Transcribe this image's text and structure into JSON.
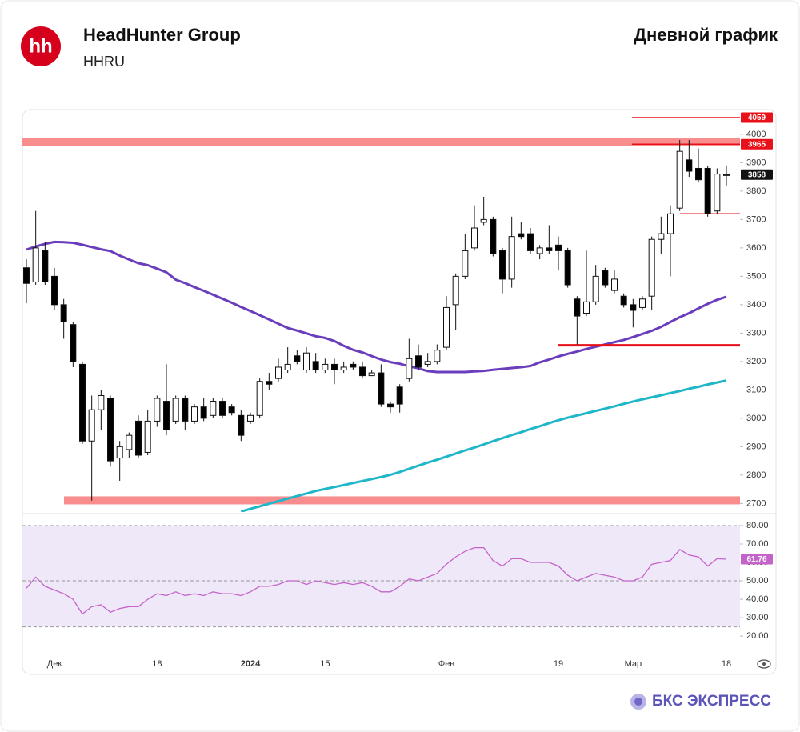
{
  "header": {
    "logo": "hh",
    "title": "HeadHunter Group",
    "ticker": "HHRU",
    "chart_label": "Дневной график"
  },
  "footer": {
    "brand": "БКС ЭКСПРЕСС"
  },
  "chart_data": {
    "type": "candlestick",
    "categories": [
      null,
      null,
      null,
      "Дек",
      null,
      null,
      null,
      null,
      null,
      null,
      null,
      null,
      null,
      null,
      "18",
      null,
      null,
      null,
      null,
      null,
      null,
      null,
      null,
      null,
      "2024",
      null,
      null,
      null,
      null,
      null,
      null,
      null,
      "15",
      null,
      null,
      null,
      null,
      null,
      null,
      null,
      null,
      null,
      null,
      null,
      null,
      "Фев",
      null,
      null,
      null,
      null,
      null,
      null,
      null,
      null,
      null,
      null,
      null,
      "19",
      null,
      null,
      null,
      null,
      null,
      null,
      null,
      "Мар",
      null,
      null,
      null,
      null,
      null,
      null,
      null,
      null,
      null,
      "18"
    ],
    "open": [
      3530,
      3480,
      3590,
      3500,
      3400,
      3330,
      3190,
      2920,
      3030,
      3070,
      2860,
      2890,
      2990,
      2880,
      2990,
      3060,
      2990,
      3070,
      2990,
      3040,
      3010,
      3060,
      3040,
      3010,
      2990,
      3010,
      3130,
      3140,
      3170,
      3220,
      3170,
      3200,
      3170,
      3190,
      3170,
      3190,
      3180,
      3150,
      3160,
      3050,
      3110,
      3140,
      3220,
      3190,
      3200,
      3250,
      3400,
      3500,
      3600,
      3690,
      3700,
      3590,
      3490,
      3650,
      3650,
      3580,
      3600,
      3610,
      3590,
      3420,
      3370,
      3410,
      3520,
      3450,
      3430,
      3400,
      3390,
      3430,
      3630,
      3650,
      3740,
      3910,
      3880,
      3880,
      3730,
      3855
    ],
    "high": [
      3560,
      3730,
      3620,
      3530,
      3420,
      3340,
      3200,
      3080,
      3100,
      3080,
      2920,
      2950,
      3010,
      3030,
      3080,
      3190,
      3080,
      3080,
      3050,
      3070,
      3070,
      3070,
      3050,
      3030,
      3020,
      3140,
      3160,
      3210,
      3250,
      3240,
      3250,
      3230,
      3210,
      3210,
      3200,
      3200,
      3200,
      3170,
      3190,
      3060,
      3120,
      3280,
      3260,
      3230,
      3260,
      3430,
      3510,
      3650,
      3750,
      3780,
      3710,
      3600,
      3710,
      3690,
      3670,
      3610,
      3680,
      3640,
      3600,
      3430,
      3590,
      3540,
      3530,
      3520,
      3440,
      3420,
      3430,
      3640,
      3710,
      3750,
      3980,
      3980,
      3950,
      3890,
      3880,
      3890
    ],
    "low": [
      3405,
      3470,
      3470,
      3380,
      3280,
      3180,
      2910,
      2710,
      2960,
      2830,
      2780,
      2860,
      2860,
      2870,
      2970,
      2940,
      2980,
      2960,
      2980,
      2990,
      3000,
      3000,
      3010,
      2920,
      2980,
      3000,
      3100,
      3130,
      3160,
      3190,
      3160,
      3160,
      3160,
      3120,
      3160,
      3170,
      3140,
      3150,
      3040,
      3020,
      3020,
      3130,
      3170,
      3180,
      3190,
      3240,
      3310,
      3490,
      3590,
      3680,
      3570,
      3440,
      3460,
      3630,
      3580,
      3560,
      3580,
      3520,
      3460,
      3260,
      3360,
      3400,
      3460,
      3440,
      3390,
      3320,
      3380,
      3380,
      3580,
      3500,
      3730,
      3850,
      3830,
      3710,
      3720,
      3820
    ],
    "close": [
      3475,
      3600,
      3480,
      3400,
      3340,
      3200,
      2920,
      3030,
      3080,
      2850,
      2900,
      2940,
      2870,
      2990,
      3070,
      2960,
      3070,
      2990,
      3040,
      3000,
      3060,
      3010,
      3020,
      2940,
      3010,
      3130,
      3120,
      3180,
      3190,
      3200,
      3230,
      3170,
      3190,
      3170,
      3180,
      3180,
      3150,
      3160,
      3050,
      3040,
      3050,
      3210,
      3180,
      3200,
      3240,
      3390,
      3500,
      3590,
      3670,
      3700,
      3580,
      3490,
      3640,
      3640,
      3590,
      3600,
      3590,
      3590,
      3470,
      3360,
      3410,
      3500,
      3470,
      3490,
      3400,
      3380,
      3420,
      3630,
      3650,
      3720,
      3940,
      3870,
      3840,
      3720,
      3860,
      3858
    ],
    "up_color": "#ffffff",
    "down_color": "#000000",
    "ylim": [
      2670,
      4087
    ],
    "yticks": [
      2700,
      2800,
      2900,
      3000,
      3100,
      3200,
      3300,
      3400,
      3500,
      3600,
      3700,
      3800,
      3900,
      4000
    ],
    "series": [
      {
        "color": "#6a3dbd",
        "values": [
          3594,
          3605,
          3614,
          3621,
          3620,
          3618,
          3611,
          3603,
          3595,
          3589,
          3573,
          3559,
          3546,
          3539,
          3527,
          3514,
          3488,
          3476,
          3462,
          3449,
          3435,
          3421,
          3407,
          3392,
          3378,
          3363,
          3348,
          3333,
          3318,
          3309,
          3299,
          3289,
          3283,
          3272,
          3255,
          3241,
          3232,
          3219,
          3207,
          3198,
          3192,
          3183,
          3176,
          3166,
          3163,
          3163,
          3163,
          3163,
          3165,
          3167,
          3171,
          3174,
          3177,
          3180,
          3184,
          3197,
          3207,
          3218,
          3227,
          3235,
          3244,
          3252,
          3260,
          3268,
          3276,
          3286,
          3297,
          3308,
          3322,
          3339,
          3356,
          3370,
          3387,
          3403,
          3417,
          3428
        ]
      },
      {
        "color": "#1eb6c8",
        "values": [
          null,
          null,
          null,
          null,
          null,
          null,
          null,
          null,
          null,
          null,
          null,
          null,
          null,
          null,
          null,
          null,
          null,
          null,
          null,
          null,
          null,
          null,
          null,
          2672,
          2681,
          2690,
          2699,
          2708,
          2717,
          2726,
          2735,
          2744,
          2751,
          2758,
          2765,
          2772,
          2779,
          2786,
          2793,
          2801,
          2811,
          2822,
          2833,
          2844,
          2854,
          2865,
          2876,
          2887,
          2897,
          2908,
          2919,
          2930,
          2941,
          2951,
          2962,
          2972,
          2983,
          2993,
          3002,
          3010,
          3018,
          3026,
          3034,
          3042,
          3051,
          3059,
          3067,
          3074,
          3081,
          3089,
          3096,
          3104,
          3111,
          3119,
          3126,
          3133
        ]
      }
    ],
    "bands": [
      {
        "value": 3972,
        "color": "#f98c8c"
      },
      {
        "value": 2711,
        "color": "#f98c8c"
      }
    ],
    "levels": [
      {
        "value": 4059,
        "color": "#e8111a",
        "width": 1.5
      },
      {
        "value": 3965,
        "color": "#e8111a",
        "width": 1.5
      },
      {
        "value": 3720,
        "color": "#e8111a",
        "width": 1.5
      },
      {
        "value": 3257,
        "color": "#e8111a",
        "width": 3
      }
    ],
    "price_labels": [
      {
        "value": 4059,
        "color": "#e8111a"
      },
      {
        "value": 3965,
        "color": "#e8111a"
      }
    ],
    "last_label_color": "#111111",
    "rsi": {
      "values": [
        46,
        52,
        47,
        45,
        43,
        40,
        32,
        36,
        37,
        33,
        35,
        36,
        36,
        40,
        43,
        42,
        44,
        42,
        43,
        42,
        44,
        43,
        43,
        42,
        44,
        47,
        47,
        48,
        50,
        50,
        48,
        50,
        49,
        48,
        49,
        48,
        49,
        47,
        44,
        44,
        47,
        51,
        50,
        52,
        54,
        59,
        63,
        66,
        68,
        68,
        61,
        58,
        62,
        62,
        60,
        60,
        60,
        58,
        53,
        50,
        52,
        54,
        53,
        52,
        50,
        50,
        52,
        59,
        60,
        61,
        67,
        64,
        63,
        58,
        62,
        61.76
      ],
      "color": "#c463c9",
      "fill": "#efe8f8",
      "ylim": [
        15.7,
        85.2
      ],
      "yticks": [
        {
          "value": 20,
          "label": "20.00"
        },
        {
          "value": 30,
          "label": "30.00"
        },
        {
          "value": 40,
          "label": "40.00"
        },
        {
          "value": 50,
          "label": "50.00"
        },
        {
          "value": 60,
          "label": "60.00"
        },
        {
          "value": 70,
          "label": "70.00"
        },
        {
          "value": 80,
          "label": "80.00"
        }
      ],
      "bands": [
        80,
        50,
        25
      ]
    }
  }
}
